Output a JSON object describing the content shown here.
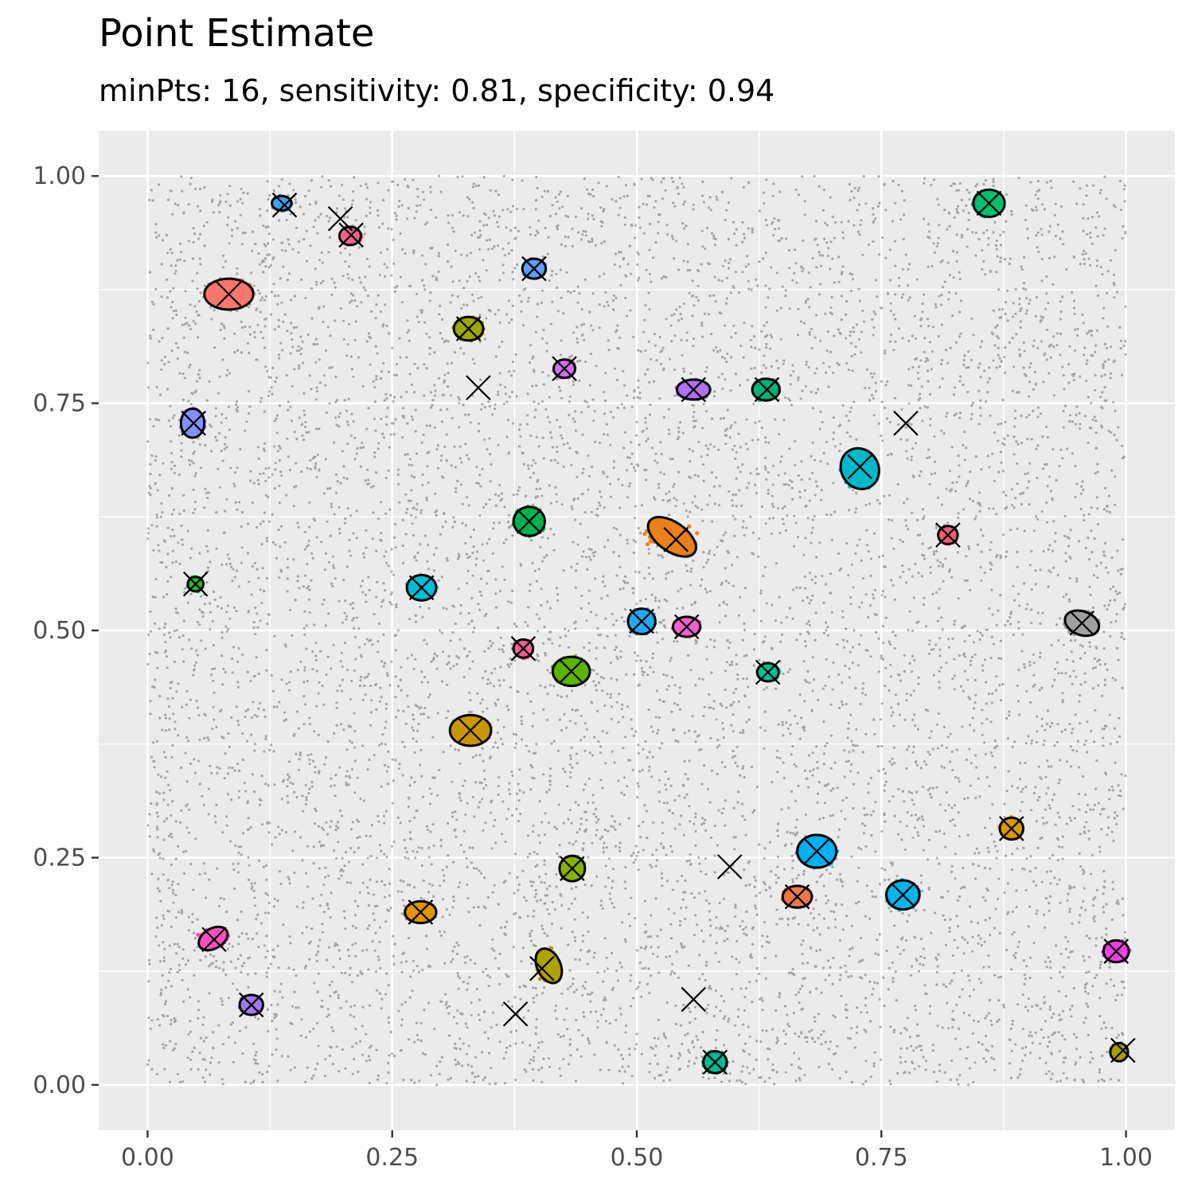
{
  "title": "Point Estimate",
  "subtitle": "minPts: 16, sensitivity: 0.81, specificity: 0.94",
  "chart_data": {
    "type": "scatter",
    "title": "Point Estimate",
    "subtitle": "minPts: 16, sensitivity: 0.81, specificity: 0.94",
    "xlabel": "",
    "ylabel": "",
    "xlim": [
      -0.05,
      1.05
    ],
    "ylim": [
      -0.05,
      1.05
    ],
    "x_ticks": [
      "0.00",
      "0.25",
      "0.50",
      "0.75",
      "1.00"
    ],
    "y_ticks": [
      "0.00",
      "0.25",
      "0.50",
      "0.75",
      "1.00"
    ],
    "x_tick_values": [
      0,
      0.25,
      0.5,
      0.75,
      1.0
    ],
    "y_tick_values": [
      0,
      0.25,
      0.5,
      0.75,
      1.0
    ],
    "grid": true,
    "background": "#ebebeb",
    "noise_points": {
      "n": 12000,
      "xrange": [
        0,
        1
      ],
      "yrange": [
        0,
        1
      ],
      "color": "#000000",
      "alpha": 0.3
    },
    "clusters": [
      {
        "x": 0.137,
        "y": 0.97,
        "rx": 0.01,
        "ry": 0.008,
        "angle": 0,
        "color": "#3ba0f0"
      },
      {
        "x": 0.207,
        "y": 0.934,
        "rx": 0.011,
        "ry": 0.01,
        "angle": 0,
        "color": "#f0648c"
      },
      {
        "x": 0.083,
        "y": 0.87,
        "rx": 0.025,
        "ry": 0.017,
        "angle": 0,
        "color": "#f8766d"
      },
      {
        "x": 0.395,
        "y": 0.898,
        "rx": 0.012,
        "ry": 0.011,
        "angle": 0,
        "color": "#619cff"
      },
      {
        "x": 0.328,
        "y": 0.832,
        "rx": 0.015,
        "ry": 0.013,
        "angle": 0,
        "color": "#9aa800"
      },
      {
        "x": 0.426,
        "y": 0.788,
        "rx": 0.011,
        "ry": 0.01,
        "angle": 0,
        "color": "#d070f0"
      },
      {
        "x": 0.558,
        "y": 0.765,
        "rx": 0.017,
        "ry": 0.011,
        "angle": 0,
        "color": "#b070f0"
      },
      {
        "x": 0.632,
        "y": 0.765,
        "rx": 0.014,
        "ry": 0.012,
        "angle": 0,
        "color": "#00b078"
      },
      {
        "x": 0.046,
        "y": 0.728,
        "rx": 0.012,
        "ry": 0.016,
        "angle": 0,
        "color": "#8490ff"
      },
      {
        "x": 0.728,
        "y": 0.678,
        "rx": 0.019,
        "ry": 0.023,
        "angle": -30,
        "color": "#00b8c8"
      },
      {
        "x": 0.39,
        "y": 0.62,
        "rx": 0.016,
        "ry": 0.016,
        "angle": 0,
        "color": "#00b050"
      },
      {
        "x": 0.536,
        "y": 0.603,
        "rx": 0.028,
        "ry": 0.016,
        "angle": 35,
        "color": "#e8801c"
      },
      {
        "x": 0.818,
        "y": 0.605,
        "rx": 0.01,
        "ry": 0.01,
        "angle": 0,
        "color": "#f05c70"
      },
      {
        "x": 0.049,
        "y": 0.551,
        "rx": 0.008,
        "ry": 0.008,
        "angle": 0,
        "color": "#2bb52b"
      },
      {
        "x": 0.28,
        "y": 0.547,
        "rx": 0.015,
        "ry": 0.014,
        "angle": 0,
        "color": "#00bcd4"
      },
      {
        "x": 0.505,
        "y": 0.51,
        "rx": 0.014,
        "ry": 0.014,
        "angle": 0,
        "color": "#20aaf0"
      },
      {
        "x": 0.551,
        "y": 0.504,
        "rx": 0.014,
        "ry": 0.011,
        "angle": 0,
        "color": "#f060d0"
      },
      {
        "x": 0.955,
        "y": 0.508,
        "rx": 0.018,
        "ry": 0.013,
        "angle": 20,
        "color": "#a0a0a0"
      },
      {
        "x": 0.384,
        "y": 0.48,
        "rx": 0.01,
        "ry": 0.01,
        "angle": 0,
        "color": "#f06090"
      },
      {
        "x": 0.433,
        "y": 0.455,
        "rx": 0.019,
        "ry": 0.016,
        "angle": 0,
        "color": "#5ab400"
      },
      {
        "x": 0.634,
        "y": 0.454,
        "rx": 0.011,
        "ry": 0.01,
        "angle": 0,
        "color": "#00c090"
      },
      {
        "x": 0.33,
        "y": 0.39,
        "rx": 0.021,
        "ry": 0.017,
        "angle": 0,
        "color": "#c89600"
      },
      {
        "x": 0.883,
        "y": 0.282,
        "rx": 0.012,
        "ry": 0.012,
        "angle": 0,
        "color": "#d89a00"
      },
      {
        "x": 0.684,
        "y": 0.257,
        "rx": 0.02,
        "ry": 0.018,
        "angle": 0,
        "color": "#00b0f0"
      },
      {
        "x": 0.434,
        "y": 0.238,
        "rx": 0.013,
        "ry": 0.014,
        "angle": 0,
        "color": "#88b000"
      },
      {
        "x": 0.772,
        "y": 0.209,
        "rx": 0.017,
        "ry": 0.016,
        "angle": 0,
        "color": "#00b4e8"
      },
      {
        "x": 0.664,
        "y": 0.207,
        "rx": 0.015,
        "ry": 0.012,
        "angle": 0,
        "color": "#f07848"
      },
      {
        "x": 0.279,
        "y": 0.19,
        "rx": 0.016,
        "ry": 0.012,
        "angle": 0,
        "color": "#e09600"
      },
      {
        "x": 0.067,
        "y": 0.161,
        "rx": 0.016,
        "ry": 0.011,
        "angle": -30,
        "color": "#f850c0"
      },
      {
        "x": 0.99,
        "y": 0.147,
        "rx": 0.013,
        "ry": 0.012,
        "angle": 0,
        "color": "#f040e0"
      },
      {
        "x": 0.41,
        "y": 0.131,
        "rx": 0.012,
        "ry": 0.02,
        "angle": -25,
        "color": "#b0a000"
      },
      {
        "x": 0.106,
        "y": 0.088,
        "rx": 0.012,
        "ry": 0.011,
        "angle": 0,
        "color": "#a078f0"
      },
      {
        "x": 0.58,
        "y": 0.025,
        "rx": 0.012,
        "ry": 0.012,
        "angle": 0,
        "color": "#00b890"
      },
      {
        "x": 0.993,
        "y": 0.036,
        "rx": 0.009,
        "ry": 0.01,
        "angle": 0,
        "color": "#a8a000"
      },
      {
        "x": 0.86,
        "y": 0.97,
        "rx": 0.016,
        "ry": 0.015,
        "angle": 0,
        "color": "#00c070"
      }
    ],
    "centers": [
      [
        0.14,
        0.968
      ],
      [
        0.197,
        0.953
      ],
      [
        0.208,
        0.935
      ],
      [
        0.083,
        0.87
      ],
      [
        0.395,
        0.898
      ],
      [
        0.328,
        0.832
      ],
      [
        0.426,
        0.788
      ],
      [
        0.338,
        0.767
      ],
      [
        0.558,
        0.765
      ],
      [
        0.633,
        0.765
      ],
      [
        0.047,
        0.728
      ],
      [
        0.775,
        0.728
      ],
      [
        0.728,
        0.68
      ],
      [
        0.39,
        0.62
      ],
      [
        0.54,
        0.6
      ],
      [
        0.818,
        0.605
      ],
      [
        0.049,
        0.551
      ],
      [
        0.28,
        0.547
      ],
      [
        0.505,
        0.51
      ],
      [
        0.551,
        0.504
      ],
      [
        0.955,
        0.508
      ],
      [
        0.384,
        0.48
      ],
      [
        0.433,
        0.455
      ],
      [
        0.634,
        0.454
      ],
      [
        0.33,
        0.39
      ],
      [
        0.883,
        0.282
      ],
      [
        0.684,
        0.257
      ],
      [
        0.434,
        0.238
      ],
      [
        0.595,
        0.24
      ],
      [
        0.772,
        0.209
      ],
      [
        0.664,
        0.207
      ],
      [
        0.279,
        0.19
      ],
      [
        0.068,
        0.16
      ],
      [
        0.99,
        0.147
      ],
      [
        0.403,
        0.128
      ],
      [
        0.106,
        0.088
      ],
      [
        0.558,
        0.094
      ],
      [
        0.376,
        0.078
      ],
      [
        0.58,
        0.025
      ],
      [
        0.997,
        0.038
      ],
      [
        0.86,
        0.97
      ]
    ]
  }
}
